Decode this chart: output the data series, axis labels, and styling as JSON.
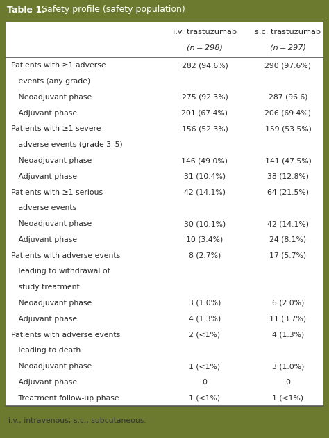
{
  "title_bold": "Table 1.",
  "title_regular": "  Safety profile (safety population)",
  "col_headers": [
    [
      "i.v. trastuzumab",
      "(n = 298)"
    ],
    [
      "s.c. trastuzumab",
      "(n = 297)"
    ]
  ],
  "rows": [
    {
      "label": "Patients with ≥1 adverse",
      "indent": 0,
      "iv": "282 (94.6%)",
      "sc": "290 (97.6%)"
    },
    {
      "label": "   events (any grade)",
      "indent": 1,
      "iv": "",
      "sc": ""
    },
    {
      "label": "   Neoadjuvant phase",
      "indent": 1,
      "iv": "275 (92.3%)",
      "sc": "287 (96.6)"
    },
    {
      "label": "   Adjuvant phase",
      "indent": 1,
      "iv": "201 (67.4%)",
      "sc": "206 (69.4%)"
    },
    {
      "label": "Patients with ≥1 severe",
      "indent": 0,
      "iv": "156 (52.3%)",
      "sc": "159 (53.5%)"
    },
    {
      "label": "   adverse events (grade 3–5)",
      "indent": 1,
      "iv": "",
      "sc": ""
    },
    {
      "label": "   Neoadjuvant phase",
      "indent": 1,
      "iv": "146 (49.0%)",
      "sc": "141 (47.5%)"
    },
    {
      "label": "   Adjuvant phase",
      "indent": 1,
      "iv": "31 (10.4%)",
      "sc": "38 (12.8%)"
    },
    {
      "label": "Patients with ≥1 serious",
      "indent": 0,
      "iv": "42 (14.1%)",
      "sc": "64 (21.5%)"
    },
    {
      "label": "   adverse events",
      "indent": 1,
      "iv": "",
      "sc": ""
    },
    {
      "label": "   Neoadjuvant phase",
      "indent": 1,
      "iv": "30 (10.1%)",
      "sc": "42 (14.1%)"
    },
    {
      "label": "   Adjuvant phase",
      "indent": 1,
      "iv": "10 (3.4%)",
      "sc": "24 (8.1%)"
    },
    {
      "label": "Patients with adverse events",
      "indent": 0,
      "iv": "8 (2.7%)",
      "sc": "17 (5.7%)"
    },
    {
      "label": "   leading to withdrawal of",
      "indent": 1,
      "iv": "",
      "sc": ""
    },
    {
      "label": "   study treatment",
      "indent": 1,
      "iv": "",
      "sc": ""
    },
    {
      "label": "   Neoadjuvant phase",
      "indent": 1,
      "iv": "3 (1.0%)",
      "sc": "6 (2.0%)"
    },
    {
      "label": "   Adjuvant phase",
      "indent": 1,
      "iv": "4 (1.3%)",
      "sc": "11 (3.7%)"
    },
    {
      "label": "Patients with adverse events",
      "indent": 0,
      "iv": "2 (<1%)",
      "sc": "4 (1.3%)"
    },
    {
      "label": "   leading to death",
      "indent": 1,
      "iv": "",
      "sc": ""
    },
    {
      "label": "   Neoadjuvant phase",
      "indent": 1,
      "iv": "1 (<1%)",
      "sc": "3 (1.0%)"
    },
    {
      "label": "   Adjuvant phase",
      "indent": 1,
      "iv": "0",
      "sc": "0"
    },
    {
      "label": "   Treatment follow-up phase",
      "indent": 1,
      "iv": "1 (<1%)",
      "sc": "1 (<1%)"
    }
  ],
  "footnote": "i.v., intravenous; s.c., subcutaneous.",
  "olive_green": "#6b7a2e",
  "white": "#ffffff",
  "bg_white": "#ffffff",
  "text_dark": "#2a2a2a",
  "line_color": "#555555",
  "title_color": "#ffffff",
  "footnote_color": "#333333"
}
